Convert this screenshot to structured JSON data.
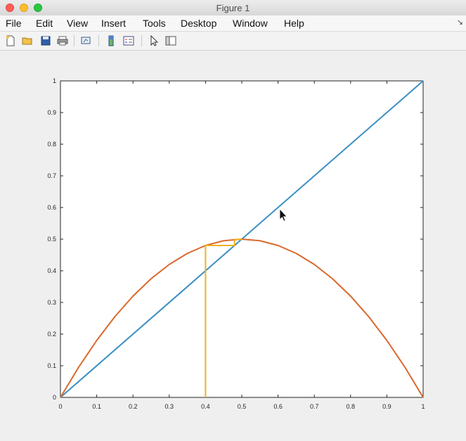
{
  "window": {
    "title": "Figure 1"
  },
  "menu": {
    "items": [
      "File",
      "Edit",
      "View",
      "Insert",
      "Tools",
      "Desktop",
      "Window",
      "Help"
    ],
    "overflow_glyph": "↘"
  },
  "toolbar": {
    "icons": [
      "new-figure-icon",
      "open-file-icon",
      "save-icon",
      "print-icon",
      "link-plot-icon",
      "insert-colorbar-icon",
      "insert-legend-icon",
      "edit-plot-icon",
      "property-editor-icon"
    ]
  },
  "chart_data": {
    "type": "line",
    "title": "",
    "xlabel": "",
    "ylabel": "",
    "xlim": [
      0,
      1
    ],
    "ylim": [
      0,
      1
    ],
    "xticks": [
      "0",
      "0.1",
      "0.2",
      "0.3",
      "0.4",
      "0.5",
      "0.6",
      "0.7",
      "0.8",
      "0.9",
      "1"
    ],
    "yticks": [
      "0",
      "0.1",
      "0.2",
      "0.3",
      "0.4",
      "0.5",
      "0.6",
      "0.7",
      "0.8",
      "0.9",
      "1"
    ],
    "grid": false,
    "series": [
      {
        "color": "#3b8fc4",
        "x": [
          0,
          1
        ],
        "y": [
          0,
          1
        ]
      },
      {
        "color": "#d9692c",
        "x": [
          0,
          0.05,
          0.1,
          0.15,
          0.2,
          0.25,
          0.3,
          0.35,
          0.4,
          0.45,
          0.5,
          0.55,
          0.6,
          0.65,
          0.7,
          0.75,
          0.8,
          0.85,
          0.9,
          0.95,
          1
        ],
        "y": [
          0,
          0.095,
          0.18,
          0.255,
          0.32,
          0.375,
          0.42,
          0.455,
          0.48,
          0.495,
          0.5,
          0.495,
          0.48,
          0.455,
          0.42,
          0.375,
          0.32,
          0.255,
          0.18,
          0.095,
          0
        ]
      },
      {
        "color": "#f0b11d",
        "x": [
          0.4,
          0.4,
          0.48,
          0.48,
          0.4992,
          0.4992
        ],
        "y": [
          0,
          0.48,
          0.48,
          0.4992,
          0.4992,
          0.5
        ]
      }
    ]
  }
}
